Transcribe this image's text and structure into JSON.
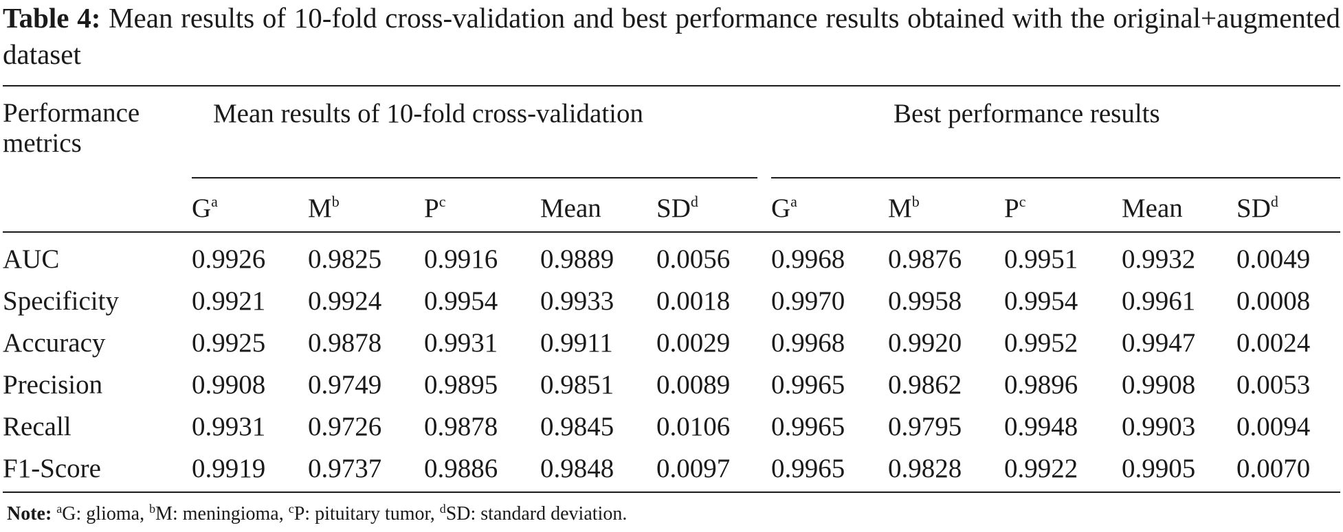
{
  "caption": {
    "label": "Table 4:",
    "text": "Mean results of 10-fold cross-validation and best performance results obtained with the original+augmented dataset"
  },
  "table": {
    "row_header_title": "Performance metrics",
    "groups": [
      "Mean results of 10-fold cross-validation",
      "Best performance results"
    ],
    "columns": [
      {
        "label": "G",
        "sup": "a"
      },
      {
        "label": "M",
        "sup": "b"
      },
      {
        "label": "P",
        "sup": "c"
      },
      {
        "label": "Mean",
        "sup": ""
      },
      {
        "label": "SD",
        "sup": "d"
      },
      {
        "label": "G",
        "sup": "a"
      },
      {
        "label": "M",
        "sup": "b"
      },
      {
        "label": "P",
        "sup": "c"
      },
      {
        "label": "Mean",
        "sup": ""
      },
      {
        "label": "SD",
        "sup": "d"
      }
    ],
    "rows": [
      {
        "metric": "AUC",
        "values": [
          "0.9926",
          "0.9825",
          "0.9916",
          "0.9889",
          "0.0056",
          "0.9968",
          "0.9876",
          "0.9951",
          "0.9932",
          "0.0049"
        ]
      },
      {
        "metric": "Specificity",
        "values": [
          "0.9921",
          "0.9924",
          "0.9954",
          "0.9933",
          "0.0018",
          "0.9970",
          "0.9958",
          "0.9954",
          "0.9961",
          "0.0008"
        ]
      },
      {
        "metric": "Accuracy",
        "values": [
          "0.9925",
          "0.9878",
          "0.9931",
          "0.9911",
          "0.0029",
          "0.9968",
          "0.9920",
          "0.9952",
          "0.9947",
          "0.0024"
        ]
      },
      {
        "metric": "Precision",
        "values": [
          "0.9908",
          "0.9749",
          "0.9895",
          "0.9851",
          "0.0089",
          "0.9965",
          "0.9862",
          "0.9896",
          "0.9908",
          "0.0053"
        ]
      },
      {
        "metric": "Recall",
        "values": [
          "0.9931",
          "0.9726",
          "0.9878",
          "0.9845",
          "0.0106",
          "0.9965",
          "0.9795",
          "0.9948",
          "0.9903",
          "0.0094"
        ]
      },
      {
        "metric": "F1-Score",
        "values": [
          "0.9919",
          "0.9737",
          "0.9886",
          "0.9848",
          "0.0097",
          "0.9965",
          "0.9828",
          "0.9922",
          "0.9905",
          "0.0070"
        ]
      }
    ]
  },
  "note": {
    "label": "Note:",
    "items": [
      {
        "sup": "a",
        "text": "G: glioma, "
      },
      {
        "sup": "b",
        "text": "M: meningioma, "
      },
      {
        "sup": "c",
        "text": "P: pituitary tumor, "
      },
      {
        "sup": "d",
        "text": "SD: standard deviation."
      }
    ]
  }
}
